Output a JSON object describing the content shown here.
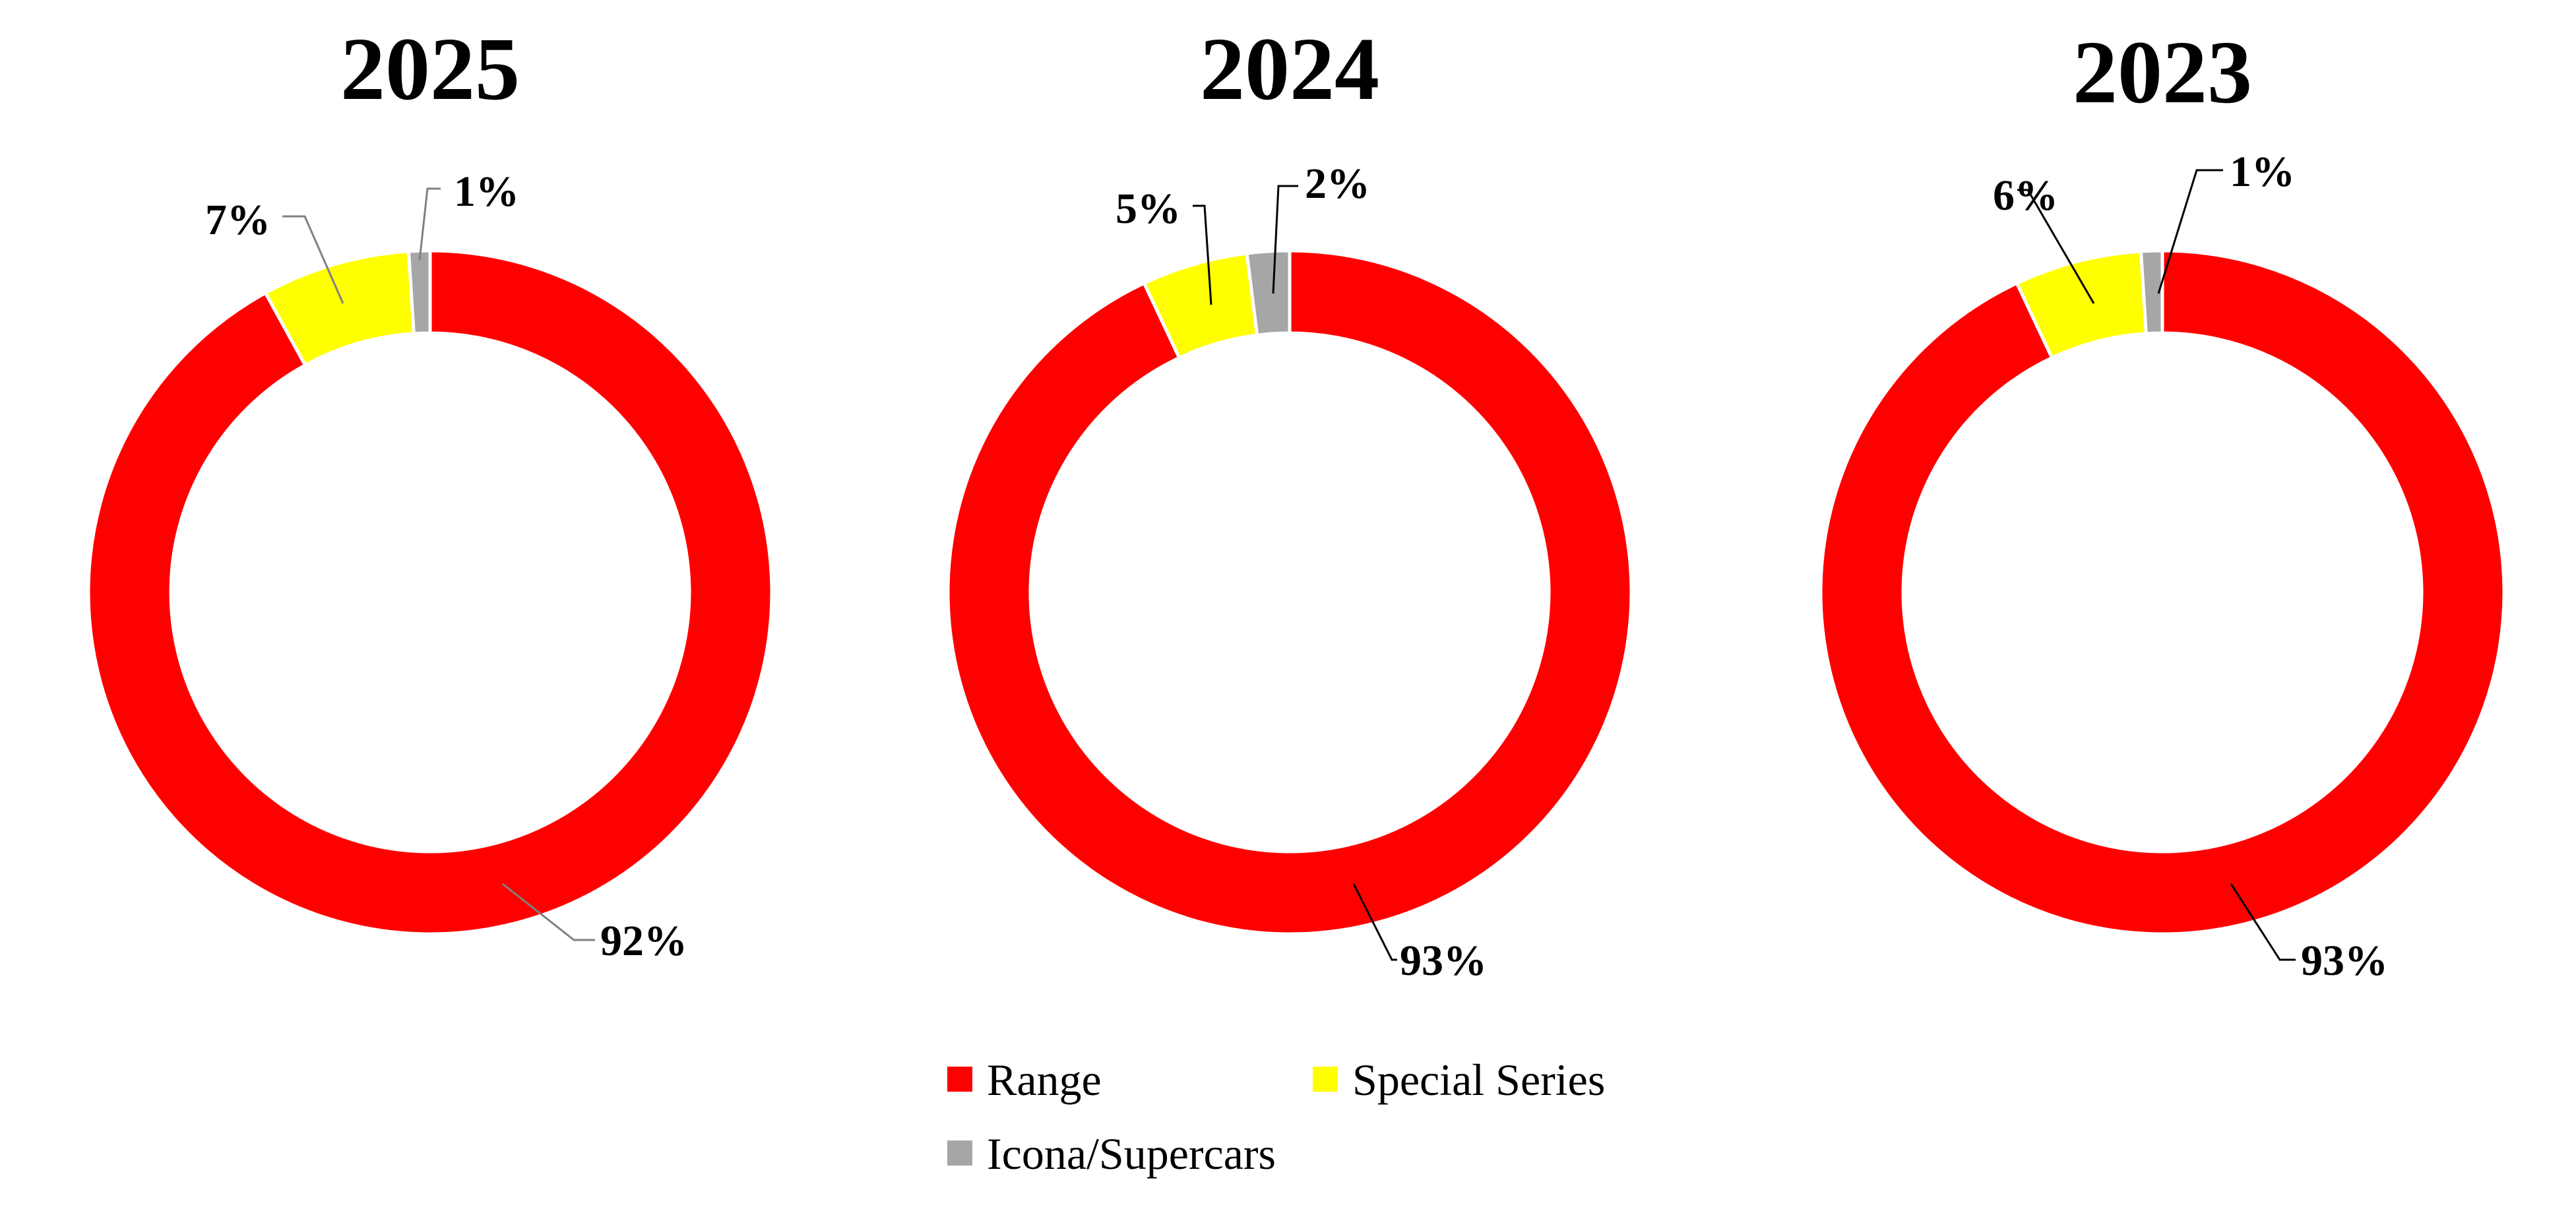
{
  "colors": {
    "Range": "#ff0000",
    "Special Series": "#ffff00",
    "Icona/Supercars": "#a6a6a6"
  },
  "legend": {
    "items": [
      {
        "label": "Range",
        "color": "#ff0000"
      },
      {
        "label": "Special Series",
        "color": "#ffff00"
      },
      {
        "label": "Icona/Supercars",
        "color": "#a6a6a6"
      }
    ]
  },
  "chart_data": [
    {
      "type": "pie",
      "variant": "donut",
      "title": "2025",
      "categories": [
        "Range",
        "Special Series",
        "Icona/Supercars"
      ],
      "values": [
        92,
        7,
        1
      ],
      "labels": [
        "92%",
        "7%",
        "1%"
      ],
      "legend_position": "bottom"
    },
    {
      "type": "pie",
      "variant": "donut",
      "title": "2024",
      "categories": [
        "Range",
        "Special Series",
        "Icona/Supercars"
      ],
      "values": [
        93,
        5,
        2
      ],
      "labels": [
        "93%",
        "5%",
        "2%"
      ],
      "legend_position": "bottom"
    },
    {
      "type": "pie",
      "variant": "donut",
      "title": "2023",
      "categories": [
        "Range",
        "Special Series",
        "Icona/Supercars"
      ],
      "values": [
        93,
        6,
        1
      ],
      "labels": [
        "93%",
        "6%",
        "1%"
      ],
      "legend_position": "bottom"
    }
  ]
}
